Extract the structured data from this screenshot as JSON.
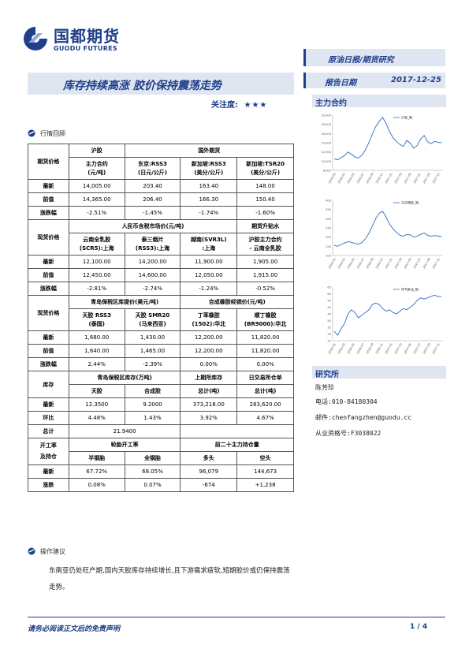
{
  "header": {
    "logo_cn": "国都期货",
    "logo_en": "GUODU FUTURES",
    "category": "原油日报/期货研究",
    "report_date_label": "报告日期",
    "report_date": "2017-12-25"
  },
  "title": {
    "main": "库存持续高涨 胶价保持震荡走势",
    "attention_label": "关注度:",
    "stars": "★★★"
  },
  "market_review": {
    "label": "行情回顾"
  },
  "table": {
    "futures": {
      "row_label": "期货价格",
      "col1_head": "沪胶",
      "group_head": "国外期货",
      "subheads": [
        "主力合约\n(元/吨)",
        "东京:RSS3\n(日元/公斤)",
        "新加坡:RSS3\n(美分/公斤)",
        "新加坡:TSR20\n(美分/公斤)"
      ],
      "rows": [
        {
          "label": "最新",
          "vals": [
            "14,005.00",
            "203.40",
            "163.40",
            "148.00"
          ]
        },
        {
          "label": "前值",
          "vals": [
            "14,365.00",
            "206.40",
            "166.30",
            "150.40"
          ]
        },
        {
          "label": "涨跌幅",
          "vals": [
            "-2.51%",
            "-1.45%",
            "-1.74%",
            "-1.60%"
          ]
        }
      ]
    },
    "spot": {
      "row_label": "现货价格",
      "group_head": "人民币含税市场价(元/吨)",
      "col4_head": "期货升贴水",
      "subheads": [
        "云南全乳胶\n(SCR5):上海",
        "泰三烟片\n(RSS3):上海",
        "越南(SVR3L)\n:上海",
        "沪胶主力合约\n- 云南全乳胶"
      ],
      "rows": [
        {
          "label": "最新",
          "vals": [
            "12,100.00",
            "14,200.00",
            "11,900.00",
            "1,905.00"
          ]
        },
        {
          "label": "前值",
          "vals": [
            "12,450.00",
            "14,600.00",
            "12,050.00",
            "1,915.00"
          ]
        },
        {
          "label": "涨跌幅",
          "vals": [
            "-2.81%",
            "-2.74%",
            "-1.24%",
            "-0.52%"
          ]
        }
      ]
    },
    "bonded": {
      "group1_head": "青岛保税区库提价(美元/吨)",
      "group2_head": "合成橡胶经销价(元/吨)",
      "subheads": [
        "天胶 RSS3\n(泰国)",
        "天胶 SMR20\n(马来西亚)",
        "丁苯橡胶\n(1502):华北",
        "顺丁橡胶\n(BR9000):华北"
      ],
      "rows": [
        {
          "label": "最新",
          "vals": [
            "1,680.00",
            "1,430.00",
            "12,200.00",
            "11,820.00"
          ]
        },
        {
          "label": "前值",
          "vals": [
            "1,640.00",
            "1,465.00",
            "12,200.00",
            "11,820.00"
          ]
        },
        {
          "label": "涨跌幅",
          "vals": [
            "2.44%",
            "-2.39%",
            "0.00%",
            "0.00%"
          ]
        }
      ]
    },
    "inventory": {
      "row_label": "库存",
      "group_head": "青岛保税区库存(万吨)",
      "col3_head": "上期所库存",
      "col4_head": "日交易所仓单",
      "subheads": [
        "天胶",
        "合成胶",
        "总计(吨)",
        "总计(吨)"
      ],
      "rows": [
        {
          "label": "最新",
          "vals": [
            "12.3500",
            "9.2000",
            "373,218.00",
            "283,620.00"
          ]
        },
        {
          "label": "环比",
          "vals": [
            "4.48%",
            "1.43%",
            "3.92%",
            "4.67%"
          ]
        }
      ],
      "total_label": "总计",
      "total_val": "21.9400"
    },
    "operating": {
      "row_label": "开工率\n及持仓",
      "group1_head": "轮胎开工率",
      "group2_head": "前二十主力持仓量",
      "subheads": [
        "半钢胎",
        "全钢胎",
        "多头",
        "空头"
      ],
      "rows": [
        {
          "label": "最新",
          "vals": [
            "67.72%",
            "68.05%",
            "96,079",
            "144,673"
          ]
        },
        {
          "label": "涨跌",
          "vals": [
            "0.08%",
            "0.07%",
            "-674",
            "+1,238"
          ]
        }
      ]
    }
  },
  "operation": {
    "label": "操作建议",
    "text": "东南亚仍处旺产期,国内天胶库存持续增长,且下游需求疲软,短期胶价或仍保持震荡走势。"
  },
  "sidebar": {
    "contract_title": "主力合约",
    "research_title": "研究所",
    "analyst": "陈芳珍",
    "phone": "电话:010-84180304",
    "email": "邮件:chenfangzhen@guodu.cc",
    "license": "从业资格号:F3038022"
  },
  "footer": {
    "disclaimer": "请务必阅读正文后的免责声明",
    "page": "1 / 4"
  },
  "chart_data": [
    {
      "type": "line",
      "legend": "沪胶_期",
      "y_ticks": [
        "20,000",
        "18,000",
        "16,000",
        "14,000",
        "12,000",
        "10,000",
        "8,000"
      ],
      "ylim": [
        8000,
        20000
      ],
      "x_ticks": [
        "2016-01",
        "2016-03",
        "2016-05",
        "2016-07",
        "2016-09",
        "2016-11",
        "2017-01",
        "2017-03",
        "2017-05",
        "2017-07",
        "2017-09",
        "2017-11"
      ],
      "values": [
        10500,
        10300,
        10800,
        11200,
        12000,
        11500,
        10900,
        10700,
        11300,
        12400,
        14000,
        15800,
        17500,
        18600,
        19500,
        18200,
        16400,
        15100,
        14300,
        13600,
        13200,
        14500,
        13900,
        12800,
        13400,
        14800,
        15600,
        14200,
        13800,
        14300,
        14100,
        14000
      ]
    },
    {
      "type": "line",
      "legend": "东京橡胶_期",
      "y_ticks": [
        "400",
        "350",
        "300",
        "250",
        "200",
        "150",
        "100"
      ],
      "ylim": [
        100,
        400
      ],
      "x_ticks": [
        "2016-01",
        "2016-03",
        "2016-05",
        "2016-07",
        "2016-09",
        "2016-11",
        "2017-01",
        "2017-03",
        "2017-05",
        "2017-07",
        "2017-09",
        "2017-11"
      ],
      "values": [
        155,
        150,
        160,
        168,
        175,
        172,
        165,
        162,
        170,
        190,
        220,
        260,
        300,
        330,
        340,
        310,
        270,
        245,
        225,
        210,
        205,
        215,
        212,
        200,
        205,
        215,
        222,
        210,
        205,
        208,
        206,
        203
      ]
    },
    {
      "type": "line",
      "legend": "WTI原油_期",
      "y_ticks": [
        "65",
        "60",
        "55",
        "50",
        "45",
        "40",
        "35",
        "30",
        "25"
      ],
      "ylim": [
        25,
        65
      ],
      "x_ticks": [
        "2016-01",
        "2016-03",
        "2016-05",
        "2016-07",
        "2016-09",
        "2016-11",
        "2017-01",
        "2017-03",
        "2017-05",
        "2017-07",
        "2017-09",
        "2017-11"
      ],
      "values": [
        32,
        29,
        34,
        38,
        45,
        48,
        46,
        42,
        44,
        46,
        48,
        52,
        53,
        52,
        49,
        47,
        48,
        46,
        45,
        47,
        49,
        48,
        50,
        52,
        55,
        57,
        56,
        57,
        58,
        59,
        58,
        58
      ]
    }
  ]
}
